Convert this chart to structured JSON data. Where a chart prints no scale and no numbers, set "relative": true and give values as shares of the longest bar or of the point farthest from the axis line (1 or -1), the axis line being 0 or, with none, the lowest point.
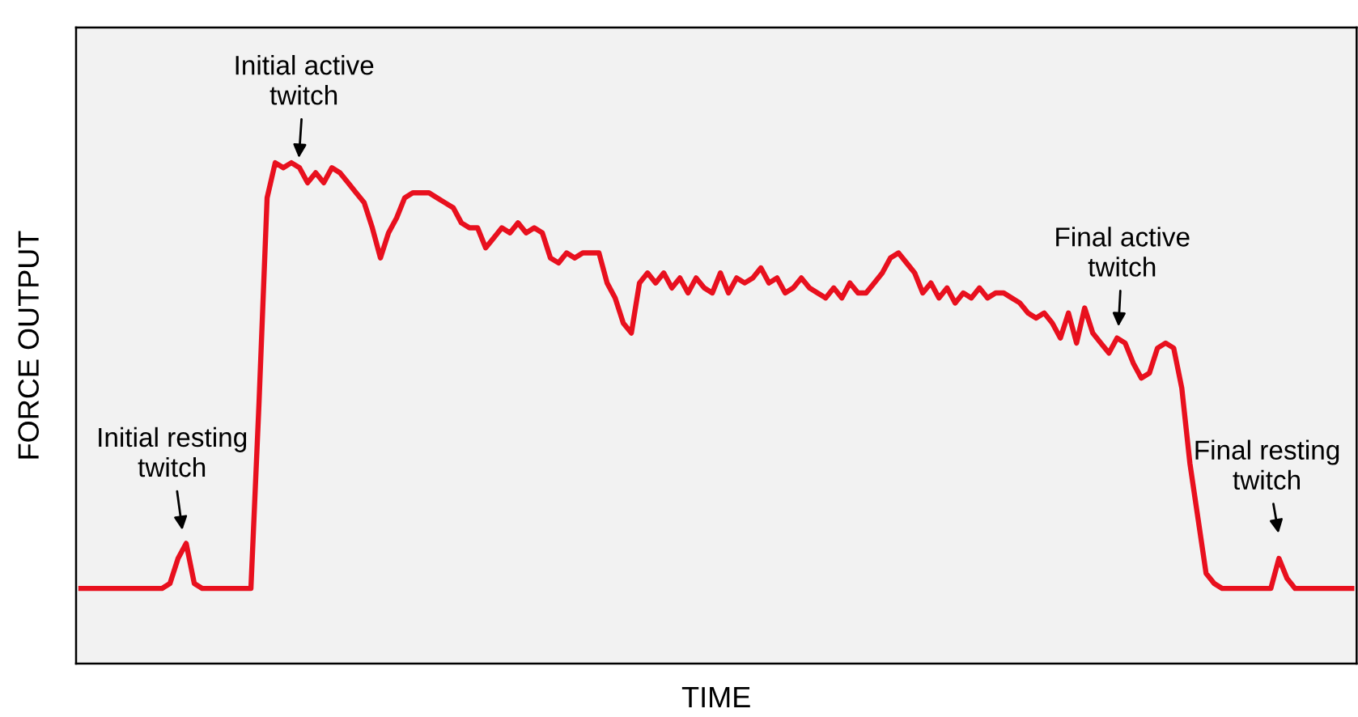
{
  "chart_data": {
    "type": "line",
    "relative": true,
    "xlabel": "TIME",
    "ylabel": "FORCE OUTPUT",
    "annotations": [
      "Initial resting\ntwitch",
      "Initial active\ntwitch",
      "Final active\ntwitch",
      "Final resting\ntwitch"
    ],
    "categories": [
      null,
      null,
      null,
      null,
      null,
      null,
      null,
      null,
      null,
      null,
      null,
      null,
      null,
      null,
      null,
      null,
      null,
      null,
      null,
      null,
      null,
      null,
      null,
      null,
      null,
      null,
      null,
      null,
      null,
      null,
      null,
      null,
      null,
      null,
      null,
      null,
      null,
      null,
      null,
      null,
      null,
      null,
      null,
      null,
      null,
      null,
      null,
      null,
      null,
      null,
      null,
      null,
      null,
      null,
      null,
      null,
      null,
      null,
      null,
      null,
      null,
      null,
      null,
      null,
      null,
      null,
      null,
      null,
      null,
      null,
      null,
      null,
      null,
      null,
      null,
      null,
      null,
      null,
      null,
      null,
      null,
      null,
      null,
      null,
      null,
      null,
      null,
      null,
      null,
      null,
      null,
      null,
      null,
      null,
      null,
      null,
      null,
      null,
      null,
      null,
      null,
      null,
      null,
      null,
      null,
      null,
      null,
      null,
      null,
      null,
      null,
      null,
      null,
      null,
      null,
      null,
      null,
      null,
      null,
      null,
      null,
      null,
      null,
      null,
      null,
      null,
      null,
      null,
      null,
      null,
      null,
      null,
      null,
      null,
      null,
      null,
      null,
      null,
      null,
      null,
      null,
      null,
      null,
      null,
      null,
      null,
      null,
      null,
      null,
      null,
      null,
      null,
      null,
      null,
      null,
      null,
      null,
      null
    ],
    "series": [
      {
        "color": "#e8101e",
        "values": [
          0.15,
          0.15,
          0.15,
          0.15,
          0.15,
          0.15,
          0.15,
          0.15,
          0.15,
          0.15,
          0.15,
          0.16,
          0.21,
          0.24,
          0.16,
          0.15,
          0.15,
          0.15,
          0.15,
          0.15,
          0.15,
          0.15,
          0.52,
          0.93,
          1.0,
          0.99,
          1.0,
          0.99,
          0.96,
          0.98,
          0.96,
          0.99,
          0.98,
          0.96,
          0.94,
          0.92,
          0.87,
          0.81,
          0.86,
          0.89,
          0.93,
          0.94,
          0.94,
          0.94,
          0.93,
          0.92,
          0.91,
          0.88,
          0.87,
          0.87,
          0.83,
          0.85,
          0.87,
          0.86,
          0.88,
          0.86,
          0.87,
          0.86,
          0.81,
          0.8,
          0.82,
          0.81,
          0.82,
          0.82,
          0.82,
          0.76,
          0.73,
          0.68,
          0.66,
          0.76,
          0.78,
          0.76,
          0.78,
          0.75,
          0.77,
          0.74,
          0.77,
          0.75,
          0.74,
          0.78,
          0.74,
          0.77,
          0.76,
          0.77,
          0.79,
          0.76,
          0.77,
          0.74,
          0.75,
          0.77,
          0.75,
          0.74,
          0.73,
          0.75,
          0.73,
          0.76,
          0.74,
          0.74,
          0.76,
          0.78,
          0.81,
          0.82,
          0.8,
          0.78,
          0.74,
          0.76,
          0.73,
          0.75,
          0.72,
          0.74,
          0.73,
          0.75,
          0.73,
          0.74,
          0.74,
          0.73,
          0.72,
          0.7,
          0.69,
          0.7,
          0.68,
          0.65,
          0.7,
          0.64,
          0.71,
          0.66,
          0.64,
          0.62,
          0.65,
          0.64,
          0.6,
          0.57,
          0.58,
          0.63,
          0.64,
          0.63,
          0.55,
          0.4,
          0.29,
          0.18,
          0.16,
          0.15,
          0.15,
          0.15,
          0.15,
          0.15,
          0.15,
          0.15,
          0.21,
          0.17,
          0.15,
          0.15,
          0.15,
          0.15,
          0.15,
          0.15,
          0.15,
          0.15
        ]
      }
    ]
  }
}
